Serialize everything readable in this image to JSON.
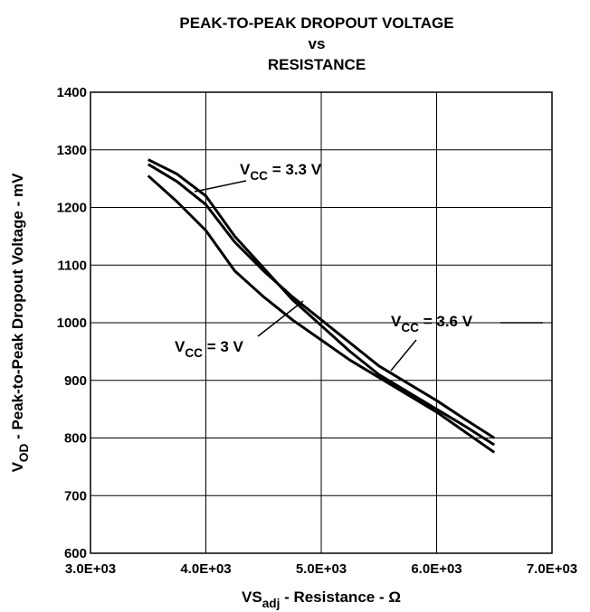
{
  "chart_data": {
    "type": "line",
    "title": [
      "PEAK-TO-PEAK DROPOUT VOLTAGE",
      "vs",
      "RESISTANCE"
    ],
    "ylabel": {
      "main": "V",
      "sub": "OD",
      "rest": " - Peak-to-Peak Dropout Voltage - mV"
    },
    "xlabel": {
      "main": "VS",
      "sub": "adj",
      "rest": " - Resistance - Ω"
    },
    "x": [
      3500,
      3750,
      4000,
      4250,
      4500,
      4750,
      5000,
      5250,
      5500,
      5750,
      6000,
      6250,
      6500
    ],
    "series": [
      {
        "color": "#000000",
        "values": [
          1275,
          1245,
          1205,
          1140,
          1090,
          1045,
          1005,
          965,
          925,
          895,
          865,
          832,
          800
        ]
      },
      {
        "color": "#000000",
        "values": [
          1283,
          1258,
          1220,
          1150,
          1095,
          1040,
          995,
          950,
          910,
          880,
          850,
          820,
          788
        ]
      },
      {
        "color": "#000000",
        "values": [
          1255,
          1210,
          1160,
          1090,
          1045,
          1005,
          970,
          935,
          905,
          875,
          845,
          810,
          775
        ]
      }
    ],
    "annotations": [
      {
        "main": "V",
        "sub": "CC",
        "rest": " = 3.3 V"
      },
      {
        "main": "V",
        "sub": "CC",
        "rest": " = 3.6 V"
      },
      {
        "main": "V",
        "sub": "CC",
        "rest": " = 3 V"
      }
    ],
    "xlim": [
      3000,
      7000
    ],
    "xticks": [
      {
        "value": 3000,
        "label": "3.0E+03"
      },
      {
        "value": 4000,
        "label": "4.0E+03"
      },
      {
        "value": 5000,
        "label": "5.0E+03"
      },
      {
        "value": 6000,
        "label": "6.0E+03"
      },
      {
        "value": 7000,
        "label": "7.0E+03"
      }
    ],
    "ylim": [
      600,
      1400
    ],
    "yticks": [
      600,
      700,
      800,
      900,
      1000,
      1100,
      1200,
      1300,
      1400
    ],
    "grid": true
  }
}
